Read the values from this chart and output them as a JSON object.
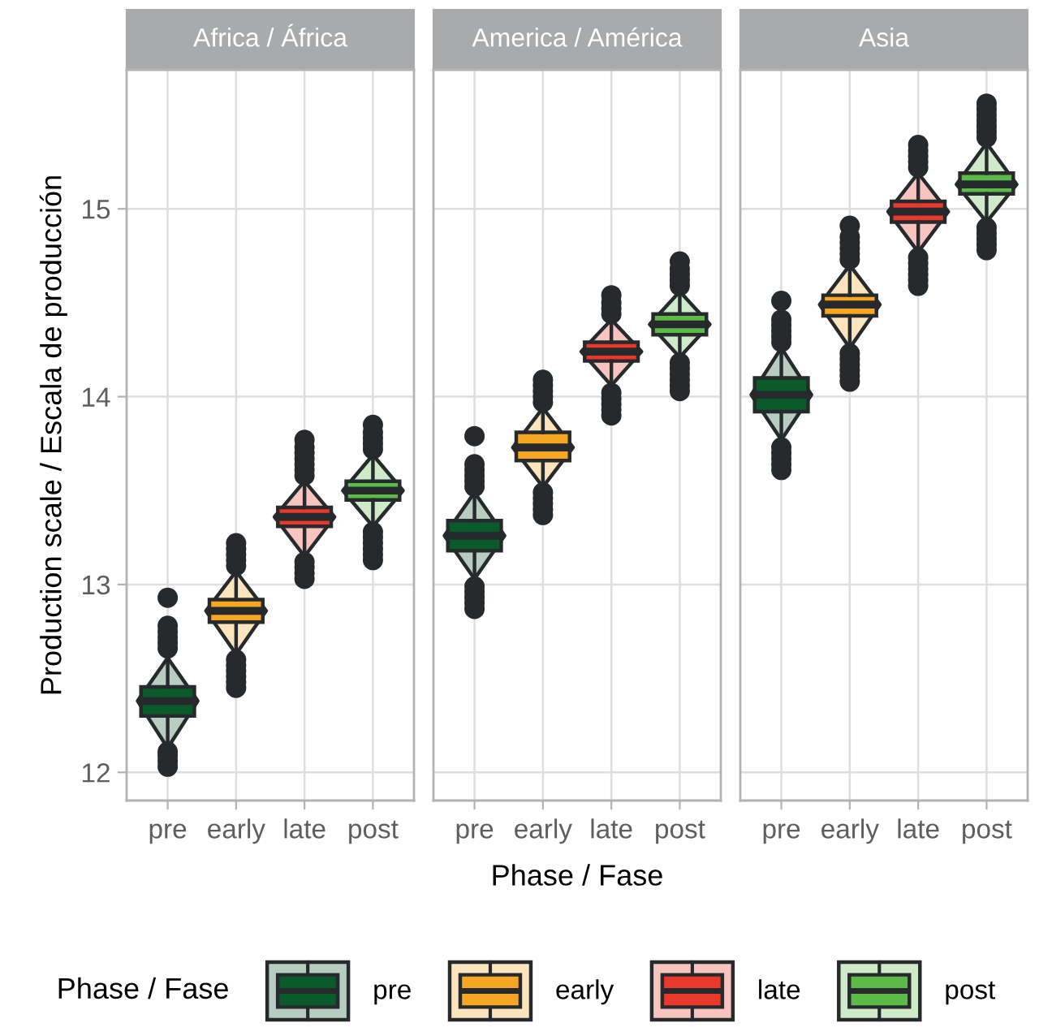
{
  "chart_data": [
    {
      "type": "box",
      "title": "Africa / África",
      "ylabel": "Production scale / Escala de producción",
      "legend": "bottom",
      "legend_title": "Phase / Fase",
      "categories": [
        "pre",
        "early",
        "late",
        "post"
      ],
      "ylim": [
        11.85,
        15.74
      ],
      "yticks": [
        12,
        13,
        14,
        15
      ],
      "grid": true,
      "series": [
        {
          "name": "pre",
          "color": "#0b5a2a",
          "boxes": [
            {
              "low": 12.13,
              "q1": 12.3,
              "median": 12.38,
              "q3": 12.455,
              "high": 12.61,
              "outliers": [
                12.03,
                12.06,
                12.09,
                12.11,
                12.66,
                12.69,
                12.72,
                12.75,
                12.78,
                12.93
              ]
            },
            null,
            null,
            null
          ]
        },
        {
          "name": "early",
          "color": "#f5a623",
          "boxes": [
            null,
            {
              "low": 12.63,
              "q1": 12.8,
              "median": 12.86,
              "q3": 12.92,
              "high": 13.07,
              "outliers": [
                12.45,
                12.48,
                12.51,
                12.54,
                12.57,
                12.6,
                13.1,
                13.13,
                13.16,
                13.19,
                13.22
              ]
            },
            null,
            null
          ]
        },
        {
          "name": "late",
          "color": "#e8392a",
          "boxes": [
            null,
            null,
            {
              "low": 13.15,
              "q1": 13.31,
              "median": 13.36,
              "q3": 13.41,
              "high": 13.55,
              "outliers": [
                13.03,
                13.06,
                13.09,
                13.12,
                13.58,
                13.61,
                13.64,
                13.67,
                13.7,
                13.73,
                13.77
              ]
            },
            null
          ]
        },
        {
          "name": "post",
          "color": "#5cba47",
          "boxes": [
            null,
            null,
            null,
            {
              "low": 13.31,
              "q1": 13.45,
              "median": 13.5,
              "q3": 13.55,
              "high": 13.69,
              "outliers": [
                13.13,
                13.16,
                13.19,
                13.22,
                13.25,
                13.28,
                13.72,
                13.75,
                13.78,
                13.81,
                13.85
              ]
            }
          ]
        }
      ]
    },
    {
      "type": "box",
      "title": "America / América",
      "xlabel": "Phase / Fase",
      "categories": [
        "pre",
        "early",
        "late",
        "post"
      ],
      "ylim": [
        11.85,
        15.74
      ],
      "yticks": [
        12,
        13,
        14,
        15
      ],
      "grid": true,
      "tick_labels": "x",
      "series": [
        {
          "color": "#0b5a2a",
          "boxes": [
            {
              "low": 13.03,
              "q1": 13.18,
              "median": 13.26,
              "q3": 13.34,
              "high": 13.49,
              "outliers": [
                12.87,
                12.9,
                12.93,
                12.96,
                12.99,
                13.52,
                13.55,
                13.58,
                13.61,
                13.64,
                13.79
              ]
            },
            null,
            null,
            null
          ]
        },
        {
          "color": "#f5a623",
          "boxes": [
            null,
            {
              "low": 13.52,
              "q1": 13.66,
              "median": 13.73,
              "q3": 13.81,
              "high": 13.94,
              "outliers": [
                13.37,
                13.4,
                13.43,
                13.46,
                13.49,
                13.97,
                14.0,
                14.03,
                14.06,
                14.09
              ]
            },
            null,
            null
          ]
        },
        {
          "color": "#e8392a",
          "boxes": [
            null,
            null,
            {
              "low": 14.06,
              "q1": 14.19,
              "median": 14.24,
              "q3": 14.29,
              "high": 14.41,
              "outliers": [
                13.9,
                13.93,
                13.96,
                13.99,
                14.02,
                14.44,
                14.47,
                14.5,
                14.54
              ]
            },
            null
          ]
        },
        {
          "color": "#5cba47",
          "boxes": [
            null,
            null,
            null,
            {
              "low": 14.21,
              "q1": 14.33,
              "median": 14.385,
              "q3": 14.44,
              "high": 14.56,
              "outliers": [
                14.03,
                14.06,
                14.09,
                14.12,
                14.15,
                14.18,
                14.59,
                14.62,
                14.65,
                14.68,
                14.72
              ]
            }
          ]
        }
      ]
    },
    {
      "type": "box",
      "title": "Asia",
      "categories": [
        "pre",
        "early",
        "late",
        "post"
      ],
      "ylim": [
        11.85,
        15.74
      ],
      "yticks": [
        12,
        13,
        14,
        15
      ],
      "grid": true,
      "tick_labels": "x",
      "series": [
        {
          "color": "#0b5a2a",
          "boxes": [
            {
              "low": 13.77,
              "q1": 13.92,
              "median": 14.01,
              "q3": 14.1,
              "high": 14.26,
              "outliers": [
                13.61,
                13.64,
                13.67,
                13.7,
                13.73,
                14.29,
                14.32,
                14.35,
                14.38,
                14.41,
                14.51
              ]
            },
            null,
            null,
            null
          ]
        },
        {
          "color": "#f5a623",
          "boxes": [
            null,
            {
              "low": 14.26,
              "q1": 14.43,
              "median": 14.49,
              "q3": 14.54,
              "high": 14.7,
              "outliers": [
                14.08,
                14.11,
                14.14,
                14.17,
                14.2,
                14.23,
                14.73,
                14.76,
                14.79,
                14.82,
                14.85,
                14.91
              ]
            },
            null,
            null
          ]
        },
        {
          "color": "#e8392a",
          "boxes": [
            null,
            null,
            {
              "low": 14.77,
              "q1": 14.93,
              "median": 14.985,
              "q3": 15.04,
              "high": 15.19,
              "outliers": [
                14.59,
                14.62,
                14.65,
                14.68,
                14.71,
                14.74,
                15.22,
                15.25,
                15.28,
                15.31,
                15.34
              ]
            },
            null
          ]
        },
        {
          "color": "#5cba47",
          "boxes": [
            null,
            null,
            null,
            {
              "low": 14.93,
              "q1": 15.08,
              "median": 15.13,
              "q3": 15.19,
              "high": 15.35,
              "outliers": [
                14.78,
                14.81,
                14.84,
                14.87,
                14.9,
                15.38,
                15.41,
                15.44,
                15.47,
                15.5,
                15.53,
                15.56
              ]
            }
          ]
        }
      ]
    }
  ]
}
